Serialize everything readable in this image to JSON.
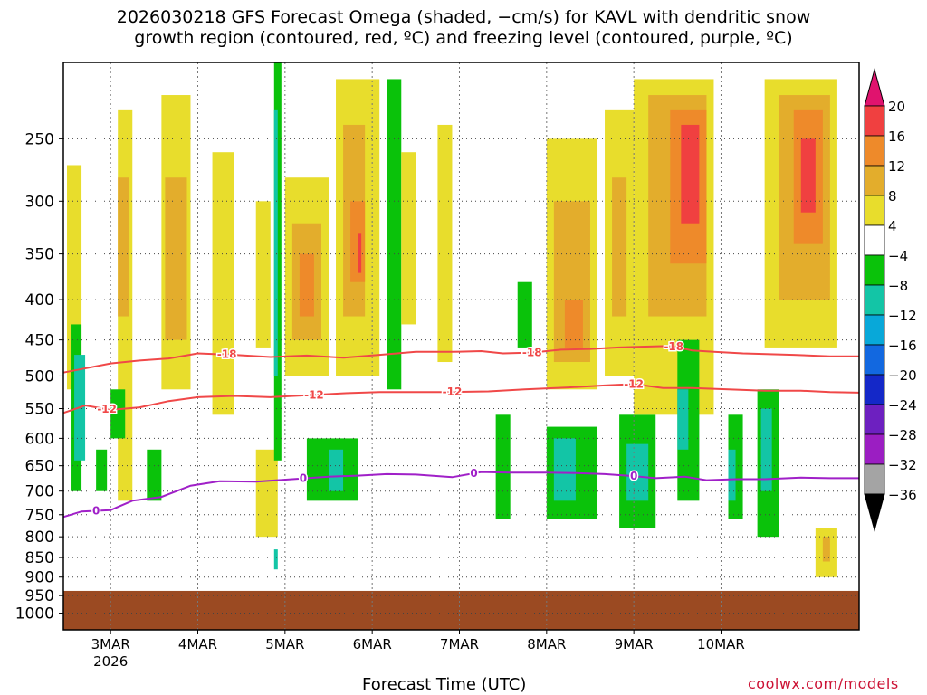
{
  "title": {
    "line1": "2026030218 GFS Forecast Omega (shaded, −cm/s) for KAVL with dendritic snow",
    "line2": "growth region (contoured, red, ºC) and freezing level (contoured, purple, ºC)"
  },
  "footer": {
    "xlabel": "Forecast Time (UTC)",
    "credit": "coolwx.com/models"
  },
  "chart_data": {
    "type": "heatmap",
    "title": "2026030218 GFS Forecast Omega (shaded, −cm/s) for KAVL with dendritic snow growth region (contoured, red, ºC) and freezing level (contoured, purple, ºC)",
    "xlabel": "Forecast Time (UTC)",
    "ylabel": "",
    "x_range_hours": [
      -7,
      212
    ],
    "x_ticks": [
      {
        "label": "3MAR",
        "sublabel": "2026",
        "hour": 6
      },
      {
        "label": "4MAR",
        "hour": 30
      },
      {
        "label": "5MAR",
        "hour": 54
      },
      {
        "label": "6MAR",
        "hour": 78
      },
      {
        "label": "7MAR",
        "hour": 102
      },
      {
        "label": "8MAR",
        "hour": 126
      },
      {
        "label": "9MAR",
        "hour": 150
      },
      {
        "label": "10MAR",
        "hour": 174
      }
    ],
    "y_scale": "log",
    "y_range_hpa": [
      200,
      1050
    ],
    "y_ticks": [
      250,
      300,
      350,
      400,
      450,
      500,
      550,
      600,
      650,
      700,
      750,
      800,
      850,
      900,
      950,
      1000
    ],
    "grid": true,
    "ground_top_hpa": 937,
    "ground_color": "#9b4a22",
    "colorbar": {
      "tick_labels": [
        "20",
        "16",
        "12",
        "8",
        "4",
        "−4",
        "−8",
        "−12",
        "−16",
        "−20",
        "−24",
        "−28",
        "−32",
        "−36"
      ],
      "colors": [
        "#e0136e",
        "#f04040",
        "#ee8a2a",
        "#e3ad2c",
        "#e8dd2c",
        "#ffffff",
        "#0ac20a",
        "#13c5a6",
        "#08a8d9",
        "#1268e0",
        "#1428c8",
        "#6d20c0",
        "#9b1ec2",
        "#a4a4a4",
        "#000000"
      ]
    },
    "series": [
      {
        "name": "-18",
        "kind": "contour",
        "color": "#f04848",
        "label_hours": [
          38,
          122,
          161
        ],
        "points": [
          [
            -7,
            495
          ],
          [
            -2,
            490
          ],
          [
            6,
            482
          ],
          [
            14,
            478
          ],
          [
            22,
            475
          ],
          [
            30,
            468
          ],
          [
            40,
            470
          ],
          [
            50,
            473
          ],
          [
            60,
            471
          ],
          [
            70,
            474
          ],
          [
            80,
            470
          ],
          [
            90,
            466
          ],
          [
            100,
            466
          ],
          [
            108,
            465
          ],
          [
            114,
            468
          ],
          [
            122,
            467
          ],
          [
            130,
            463
          ],
          [
            138,
            462
          ],
          [
            146,
            460
          ],
          [
            152,
            459
          ],
          [
            160,
            458
          ],
          [
            166,
            464
          ],
          [
            172,
            466
          ],
          [
            180,
            468
          ],
          [
            194,
            470
          ],
          [
            204,
            472
          ],
          [
            212,
            472
          ]
        ]
      },
      {
        "name": "-12",
        "kind": "contour",
        "color": "#f04848",
        "label_hours": [
          5,
          62,
          100,
          150
        ],
        "points": [
          [
            -7,
            557
          ],
          [
            -1,
            545
          ],
          [
            6,
            552
          ],
          [
            14,
            548
          ],
          [
            22,
            538
          ],
          [
            30,
            532
          ],
          [
            40,
            530
          ],
          [
            50,
            532
          ],
          [
            60,
            529
          ],
          [
            70,
            526
          ],
          [
            80,
            524
          ],
          [
            90,
            524
          ],
          [
            100,
            524
          ],
          [
            110,
            523
          ],
          [
            120,
            520
          ],
          [
            132,
            517
          ],
          [
            142,
            514
          ],
          [
            150,
            512
          ],
          [
            158,
            518
          ],
          [
            166,
            518
          ],
          [
            176,
            520
          ],
          [
            186,
            522
          ],
          [
            196,
            522
          ],
          [
            204,
            524
          ],
          [
            212,
            525
          ]
        ]
      },
      {
        "name": "0",
        "kind": "contour",
        "color": "#a020c8",
        "label_hours": [
          2,
          59,
          106,
          150
        ],
        "points": [
          [
            -7,
            755
          ],
          [
            -2,
            743
          ],
          [
            6,
            740
          ],
          [
            12,
            720
          ],
          [
            20,
            712
          ],
          [
            28,
            689
          ],
          [
            36,
            680
          ],
          [
            46,
            681
          ],
          [
            56,
            676
          ],
          [
            66,
            671
          ],
          [
            74,
            669
          ],
          [
            82,
            666
          ],
          [
            90,
            667
          ],
          [
            100,
            672
          ],
          [
            108,
            662
          ],
          [
            116,
            663
          ],
          [
            126,
            663
          ],
          [
            134,
            664
          ],
          [
            142,
            666
          ],
          [
            150,
            670
          ],
          [
            156,
            674
          ],
          [
            164,
            671
          ],
          [
            170,
            678
          ],
          [
            178,
            676
          ],
          [
            186,
            676
          ],
          [
            196,
            673
          ],
          [
            204,
            674
          ],
          [
            212,
            674
          ]
        ]
      },
      {
        "name": "omega",
        "kind": "shaded_cells",
        "units": "-cm/s",
        "cells": [
          [
            -6,
            -2,
            270,
            520,
            4
          ],
          [
            -5,
            -2,
            430,
            700,
            -8
          ],
          [
            -4,
            -1,
            470,
            640,
            -12
          ],
          [
            8,
            12,
            230,
            720,
            4
          ],
          [
            8,
            11,
            280,
            420,
            8
          ],
          [
            6,
            10,
            520,
            600,
            -8
          ],
          [
            20,
            28,
            220,
            520,
            4
          ],
          [
            21,
            27,
            280,
            450,
            8
          ],
          [
            16,
            20,
            620,
            720,
            -8
          ],
          [
            2,
            5,
            620,
            700,
            -8
          ],
          [
            34,
            40,
            260,
            560,
            4
          ],
          [
            46,
            50,
            300,
            460,
            4
          ],
          [
            46,
            52,
            620,
            800,
            4
          ],
          [
            51,
            53,
            200,
            640,
            -8
          ],
          [
            51,
            52,
            230,
            500,
            -12
          ],
          [
            51,
            52,
            830,
            880,
            -12
          ],
          [
            54,
            66,
            280,
            500,
            4
          ],
          [
            56,
            64,
            320,
            450,
            8
          ],
          [
            58,
            62,
            350,
            420,
            12
          ],
          [
            68,
            80,
            210,
            500,
            4
          ],
          [
            70,
            76,
            240,
            420,
            8
          ],
          [
            72,
            76,
            300,
            380,
            12
          ],
          [
            74,
            75,
            330,
            370,
            16
          ],
          [
            60,
            74,
            600,
            720,
            -8
          ],
          [
            66,
            70,
            620,
            700,
            -12
          ],
          [
            82,
            86,
            210,
            520,
            -8
          ],
          [
            86,
            90,
            260,
            430,
            4
          ],
          [
            96,
            100,
            240,
            480,
            4
          ],
          [
            112,
            116,
            560,
            760,
            -8
          ],
          [
            118,
            122,
            380,
            460,
            -8
          ],
          [
            126,
            140,
            250,
            520,
            4
          ],
          [
            128,
            138,
            300,
            480,
            8
          ],
          [
            131,
            136,
            400,
            460,
            12
          ],
          [
            126,
            140,
            580,
            760,
            -8
          ],
          [
            128,
            134,
            600,
            720,
            -12
          ],
          [
            142,
            150,
            230,
            500,
            4
          ],
          [
            144,
            148,
            280,
            420,
            8
          ],
          [
            146,
            156,
            560,
            780,
            -8
          ],
          [
            148,
            154,
            610,
            720,
            -12
          ],
          [
            150,
            172,
            210,
            560,
            4
          ],
          [
            154,
            170,
            220,
            420,
            8
          ],
          [
            160,
            170,
            230,
            360,
            12
          ],
          [
            163,
            168,
            240,
            320,
            16
          ],
          [
            162,
            168,
            450,
            720,
            -8
          ],
          [
            162,
            165,
            520,
            620,
            -12
          ],
          [
            176,
            180,
            560,
            760,
            -8
          ],
          [
            176,
            178,
            620,
            720,
            -12
          ],
          [
            186,
            206,
            210,
            460,
            4
          ],
          [
            190,
            204,
            220,
            400,
            8
          ],
          [
            194,
            202,
            230,
            340,
            12
          ],
          [
            196,
            200,
            250,
            310,
            16
          ],
          [
            184,
            190,
            520,
            800,
            -8
          ],
          [
            185,
            188,
            550,
            700,
            -12
          ],
          [
            200,
            206,
            780,
            900,
            4
          ],
          [
            202,
            204,
            800,
            860,
            8
          ]
        ]
      }
    ]
  }
}
